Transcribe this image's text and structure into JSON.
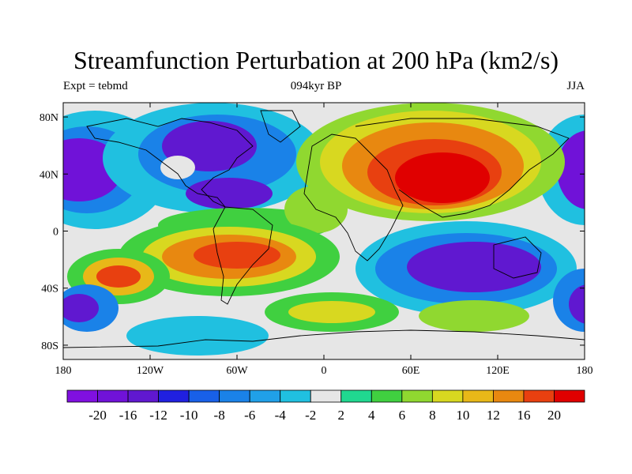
{
  "title": "Streamfunction Perturbation at 200 hPa (km2/s)",
  "subtitle_left": "Expt = tebmd",
  "subtitle_center": "094kyr BP",
  "subtitle_right": "JJA",
  "map": {
    "x_ticks": [
      "180",
      "120W",
      "60W",
      "0",
      "60E",
      "120E",
      "180"
    ],
    "y_ticks": [
      "80N",
      "40N",
      "0",
      "40S",
      "80S"
    ],
    "background_color": "#e6e6e6",
    "fields": [
      {
        "name": "north-pacific-low",
        "level": -20,
        "lon": -165,
        "lat": 35
      },
      {
        "name": "north-america-low",
        "level": -16,
        "lon": -95,
        "lat": 55
      },
      {
        "name": "asia-high",
        "level": 20,
        "lon": 80,
        "lat": 35
      },
      {
        "name": "south-america-high",
        "level": 16,
        "lon": -65,
        "lat": -22
      },
      {
        "name": "south-pacific-high",
        "level": 12,
        "lon": -140,
        "lat": -40
      },
      {
        "name": "indian-ocean-low",
        "level": -20,
        "lon": 110,
        "lat": -35
      },
      {
        "name": "southern-ocean-ring",
        "level": 10,
        "lon": 20,
        "lat": -60
      }
    ]
  },
  "colorbar": {
    "colors": [
      "#8010e0",
      "#7012d8",
      "#6018d0",
      "#2020e0",
      "#1860e8",
      "#1a82e8",
      "#20a0e8",
      "#20c0e0",
      "#e6e6e6",
      "#20d890",
      "#40d040",
      "#90d830",
      "#d8d820",
      "#e8b818",
      "#e88810",
      "#e84010",
      "#e00000"
    ],
    "labels": [
      "-20",
      "-16",
      "-12",
      "-10",
      "-8",
      "-6",
      "-4",
      "-2",
      "2",
      "4",
      "6",
      "8",
      "10",
      "12",
      "16",
      "20"
    ]
  }
}
